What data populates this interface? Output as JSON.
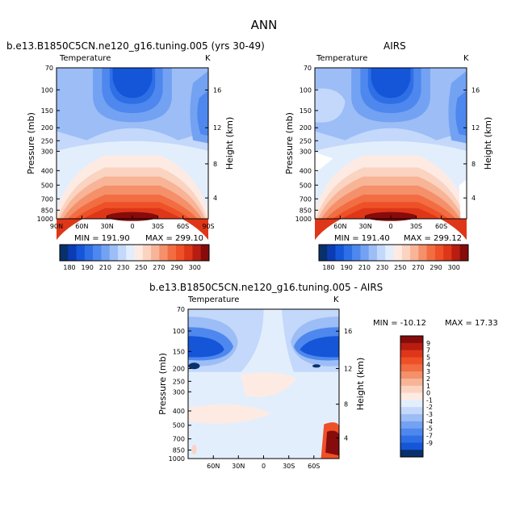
{
  "title": "ANN",
  "colors": {
    "cool": [
      "#08306b",
      "#0b3cb4",
      "#1556d8",
      "#2f6fe6",
      "#4e88ee",
      "#73a2f2",
      "#9cbdf6",
      "#c3d8fa",
      "#e3eefd"
    ],
    "warm": [
      "#fdebe3",
      "#fbd3c1",
      "#f8b497",
      "#f4906a",
      "#f26d42",
      "#ee5028",
      "#de3618",
      "#b71d10",
      "#860b0b"
    ]
  },
  "chart_data": [
    {
      "type": "heatmap",
      "panel_caption": "b.e13.B1850C5CN.ne120_g16.tuning.005 (yrs 30-49)",
      "variable": "Temperature",
      "units": "K",
      "ylabel": "Pressure (mb)",
      "y2label": "Height (km)",
      "y_ticks": [
        "70",
        "100",
        "150",
        "200",
        "250",
        "300",
        "400",
        "500",
        "700",
        "850",
        "1000"
      ],
      "y2_ticks": [
        "16",
        "12",
        "8",
        "4"
      ],
      "x_ticks": [
        "90N",
        "60N",
        "30N",
        "0",
        "30S",
        "60S",
        "90S"
      ],
      "min_text": "MIN = 191.90",
      "max_text": "MAX = 299.10",
      "colorbar_labels": [
        "180",
        "190",
        "210",
        "230",
        "250",
        "270",
        "290",
        "300"
      ]
    },
    {
      "type": "heatmap",
      "panel_caption": "AIRS",
      "variable": "Temperature",
      "units": "K",
      "ylabel": "Pressure (mb)",
      "y2label": "Height (km)",
      "y_ticks": [
        "70",
        "100",
        "150",
        "200",
        "250",
        "300",
        "400",
        "500",
        "700",
        "850",
        "1000"
      ],
      "y2_ticks": [
        "16",
        "12",
        "8",
        "4"
      ],
      "x_ticks": [
        "60N",
        "30N",
        "0",
        "30S",
        "60S"
      ],
      "min_text": "MIN = 191.40",
      "max_text": "MAX = 299.12",
      "colorbar_labels": [
        "180",
        "190",
        "210",
        "230",
        "250",
        "270",
        "290",
        "300"
      ]
    },
    {
      "type": "heatmap",
      "panel_caption": "b.e13.B1850C5CN.ne120_g16.tuning.005 - AIRS",
      "variable": "Temperature",
      "units": "K",
      "ylabel": "Pressure (mb)",
      "y2label": "Height (km)",
      "y_ticks": [
        "70",
        "100",
        "150",
        "200",
        "250",
        "300",
        "400",
        "500",
        "700",
        "850",
        "1000"
      ],
      "y2_ticks": [
        "16",
        "12",
        "8",
        "4"
      ],
      "x_ticks": [
        "60N",
        "30N",
        "0",
        "30S",
        "60S"
      ],
      "min_text": "MIN = -10.12",
      "max_text": "MAX = 17.33",
      "colorbar_labels": [
        "9",
        "7",
        "5",
        "4",
        "3",
        "2",
        "1",
        "0",
        "-1",
        "-2",
        "-3",
        "-4",
        "-5",
        "-7",
        "-9"
      ]
    }
  ]
}
